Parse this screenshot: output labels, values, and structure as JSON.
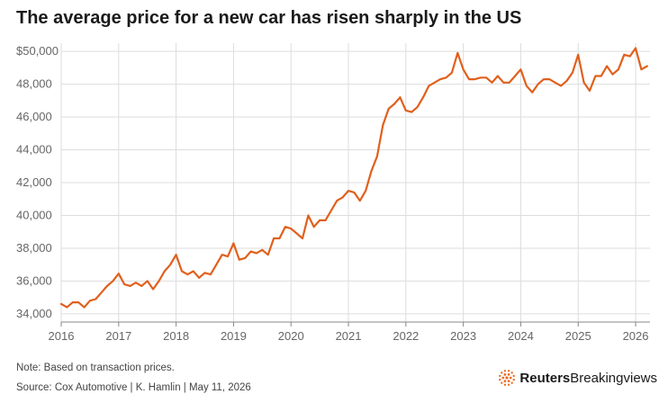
{
  "title": "The average price for a new car has risen sharply in the US",
  "note": "Note: Based on transaction prices.",
  "source": "Source: Cox Automotive | K. Hamlin | May 11, 2026",
  "brand": {
    "name_bold": "Reuters",
    "name_light": "Breakingviews",
    "logo_icon": "reuters-dot-logo-icon",
    "color": "#e8702a"
  },
  "colors": {
    "line": "#e0601c",
    "grid": "#dddddd",
    "axis": "#888888"
  },
  "chart_data": {
    "type": "line",
    "title": "The average price for a new car has risen sharply in the US",
    "xlabel": "",
    "ylabel": "",
    "xlim": [
      2016.0,
      2026.25
    ],
    "ylim": [
      33500,
      50500
    ],
    "grid": "vertical lines at year ticks, horizontal lines at y ticks",
    "legend": "none",
    "y_ticks": [
      34000,
      36000,
      38000,
      40000,
      42000,
      44000,
      46000,
      48000,
      50000
    ],
    "y_tick_labels": [
      "34,000",
      "36,000",
      "38,000",
      "40,000",
      "42,000",
      "44,000",
      "46,000",
      "48,000",
      "$50,000"
    ],
    "x_ticks": [
      2016,
      2017,
      2018,
      2019,
      2020,
      2021,
      2022,
      2023,
      2024,
      2025,
      2026
    ],
    "x_tick_labels": [
      "2016",
      "2017",
      "2018",
      "2019",
      "2020",
      "2021",
      "2022",
      "2023",
      "2024",
      "2025",
      "2026"
    ],
    "series": [
      {
        "name": "",
        "color": "#e0601c",
        "x": [
          2016.0,
          2016.1,
          2016.2,
          2016.3,
          2016.4,
          2016.5,
          2016.6,
          2016.7,
          2016.8,
          2016.9,
          2017.0,
          2017.1,
          2017.2,
          2017.3,
          2017.4,
          2017.5,
          2017.6,
          2017.7,
          2017.8,
          2017.9,
          2018.0,
          2018.1,
          2018.2,
          2018.3,
          2018.4,
          2018.5,
          2018.6,
          2018.7,
          2018.8,
          2018.9,
          2019.0,
          2019.1,
          2019.2,
          2019.3,
          2019.4,
          2019.5,
          2019.6,
          2019.7,
          2019.8,
          2019.9,
          2020.0,
          2020.1,
          2020.2,
          2020.3,
          2020.4,
          2020.5,
          2020.6,
          2020.7,
          2020.8,
          2020.9,
          2021.0,
          2021.1,
          2021.2,
          2021.3,
          2021.4,
          2021.5,
          2021.6,
          2021.7,
          2021.8,
          2021.9,
          2022.0,
          2022.1,
          2022.2,
          2022.3,
          2022.4,
          2022.5,
          2022.6,
          2022.7,
          2022.8,
          2022.9,
          2023.0,
          2023.1,
          2023.2,
          2023.3,
          2023.4,
          2023.5,
          2023.6,
          2023.7,
          2023.8,
          2023.9,
          2024.0,
          2024.1,
          2024.2,
          2024.3,
          2024.4,
          2024.5,
          2024.6,
          2024.7,
          2024.8,
          2024.9,
          2025.0,
          2025.1,
          2025.2,
          2025.3,
          2025.4,
          2025.5,
          2025.6,
          2025.7,
          2025.8,
          2025.9,
          2026.0,
          2026.1,
          2026.2
        ],
        "y": [
          34600,
          34400,
          34700,
          34700,
          34400,
          34800,
          34900,
          35300,
          35700,
          36000,
          36450,
          35800,
          35700,
          35900,
          35700,
          36000,
          35500,
          36000,
          36600,
          37000,
          37600,
          36600,
          36400,
          36600,
          36200,
          36500,
          36400,
          37000,
          37600,
          37500,
          38300,
          37300,
          37400,
          37800,
          37700,
          37900,
          37600,
          38600,
          38600,
          39300,
          39200,
          38900,
          38600,
          40000,
          39300,
          39700,
          39700,
          40300,
          40900,
          41100,
          41500,
          41400,
          40900,
          41500,
          42700,
          43600,
          45500,
          46500,
          46800,
          47200,
          46400,
          46300,
          46600,
          47200,
          47900,
          48100,
          48300,
          48400,
          48700,
          49900,
          48900,
          48300,
          48300,
          48400,
          48400,
          48100,
          48500,
          48100,
          48100,
          48500,
          48900,
          47900,
          47500,
          48000,
          48300,
          48300,
          48100,
          47900,
          48200,
          48700,
          49800,
          48100,
          47600,
          48500,
          48500,
          49100,
          48600,
          48900,
          49800,
          49700,
          50200,
          48900,
          49100
        ]
      }
    ]
  }
}
